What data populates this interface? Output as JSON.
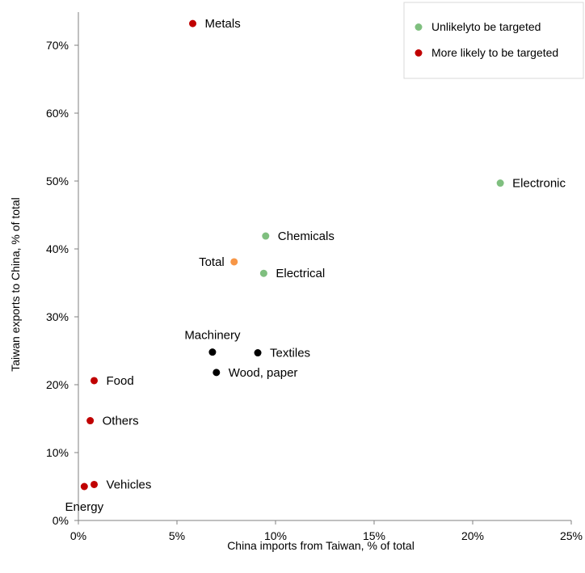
{
  "chart_data": {
    "type": "scatter",
    "xlabel": "China imports from Taiwan, % of total",
    "ylabel": "Taiwan exports to China, % of total",
    "xlim": [
      0,
      25
    ],
    "ylim": [
      0,
      75
    ],
    "x_ticks": [
      0,
      5,
      10,
      15,
      20,
      25
    ],
    "y_ticks": [
      0,
      10,
      20,
      30,
      40,
      50,
      60,
      70
    ],
    "x_tick_labels": [
      "0%",
      "5%",
      "10%",
      "15%",
      "20%",
      "25%"
    ],
    "y_tick_labels": [
      "0%",
      "10%",
      "20%",
      "30%",
      "40%",
      "50%",
      "60%",
      "70%"
    ],
    "grid": false,
    "legend_position": "top-right",
    "legend": [
      {
        "label": "Unlikelyto be targeted",
        "color": "#7fbf7f"
      },
      {
        "label": "More likely to be targeted",
        "color": "#c00000"
      }
    ],
    "points": [
      {
        "label": "Metals",
        "x": 5.8,
        "y": 73.2,
        "color": "#c00000",
        "label_pos": "right"
      },
      {
        "label": "Electronic",
        "x": 21.4,
        "y": 49.7,
        "color": "#7fbf7f",
        "label_pos": "right"
      },
      {
        "label": "Chemicals",
        "x": 9.5,
        "y": 41.9,
        "color": "#7fbf7f",
        "label_pos": "right"
      },
      {
        "label": "Total",
        "x": 7.9,
        "y": 38.1,
        "color": "#f79646",
        "label_pos": "left"
      },
      {
        "label": "Electrical",
        "x": 9.4,
        "y": 36.4,
        "color": "#7fbf7f",
        "label_pos": "right"
      },
      {
        "label": "Machinery",
        "x": 6.8,
        "y": 24.8,
        "color": "#000000",
        "label_pos": "above"
      },
      {
        "label": "Textiles",
        "x": 9.1,
        "y": 24.7,
        "color": "#000000",
        "label_pos": "right"
      },
      {
        "label": "Wood, paper",
        "x": 7.0,
        "y": 21.8,
        "color": "#000000",
        "label_pos": "right"
      },
      {
        "label": "Food",
        "x": 0.8,
        "y": 20.6,
        "color": "#c00000",
        "label_pos": "right"
      },
      {
        "label": "Others",
        "x": 0.6,
        "y": 14.7,
        "color": "#c00000",
        "label_pos": "right"
      },
      {
        "label": "Vehicles",
        "x": 0.8,
        "y": 5.3,
        "color": "#c00000",
        "label_pos": "right"
      },
      {
        "label": "Energy",
        "x": 0.3,
        "y": 5.0,
        "color": "#c00000",
        "label_pos": "below"
      }
    ]
  }
}
